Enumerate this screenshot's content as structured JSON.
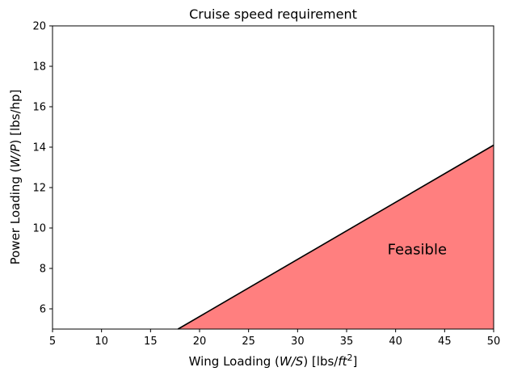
{
  "chart_data": {
    "type": "area",
    "title": "Cruise speed requirement",
    "xlabel": {
      "prefix": "Wing Loading (",
      "var": "W/S",
      "mid": ") [lbs/",
      "unit": "ft",
      "sup": "2",
      "suffix": "]"
    },
    "ylabel": {
      "prefix": "Power Loading (",
      "var": "W/P",
      "suffix": ") [lbs/hp]"
    },
    "xlim": [
      5,
      50
    ],
    "ylim": [
      5,
      20
    ],
    "xticks": [
      5,
      10,
      15,
      20,
      25,
      30,
      35,
      40,
      45,
      50
    ],
    "yticks": [
      6,
      8,
      10,
      12,
      14,
      16,
      18,
      20
    ],
    "grid": false,
    "series": [
      {
        "x": [
          17.8,
          50
        ],
        "y": [
          5,
          14.1
        ],
        "line_color": "#000000",
        "fill_below": true,
        "fill_color": "#ff7f7f"
      }
    ],
    "annotations": [
      {
        "text": "Feasible",
        "x": 42.2,
        "y": 8.9
      }
    ]
  }
}
